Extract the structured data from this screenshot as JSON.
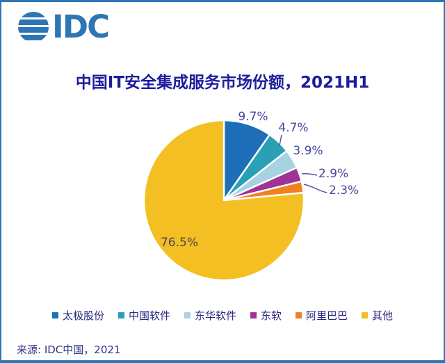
{
  "page": {
    "border_color": "#2e75b6",
    "background": "#ffffff"
  },
  "logo": {
    "text": "IDC",
    "color": "#2e75b6",
    "icon": "globe-stripes-icon"
  },
  "chart_data": {
    "type": "pie",
    "title": "中国IT安全集成服务市场份额，2021H1",
    "title_color": "#1c1c9e",
    "legend_position": "bottom",
    "direction": "clockwise",
    "start_angle_deg": 0,
    "label_colors": {
      "outside": "#4747a6",
      "inside": "#4a4550"
    },
    "leader_line_color": "#5555aa",
    "legend_text_color": "#28287f",
    "slices": [
      {
        "name": "太极股份",
        "value": 9.7,
        "label": "9.7%",
        "color": "#1e6fb8"
      },
      {
        "name": "中国软件",
        "value": 4.7,
        "label": "4.7%",
        "color": "#29a0b6"
      },
      {
        "name": "东华软件",
        "value": 3.9,
        "label": "3.9%",
        "color": "#a7d2e2"
      },
      {
        "name": "东软",
        "value": 2.9,
        "label": "2.9%",
        "color": "#9e3397"
      },
      {
        "name": "阿里巴巴",
        "value": 2.3,
        "label": "2.3%",
        "color": "#f08122"
      },
      {
        "name": "其他",
        "value": 76.5,
        "label": "76.5%",
        "color": "#f3bf22"
      }
    ]
  },
  "source": {
    "text": "来源: IDC中国，2021",
    "color": "#32328c"
  }
}
